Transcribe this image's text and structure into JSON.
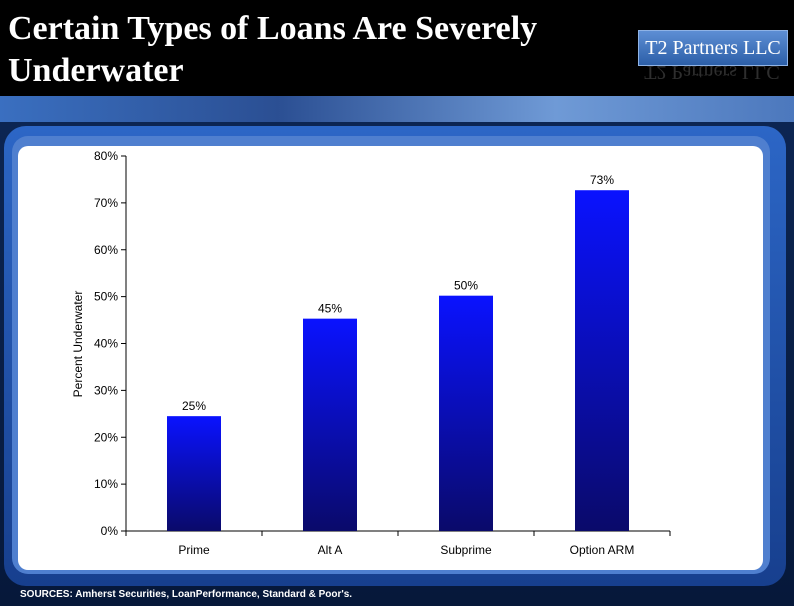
{
  "slide": {
    "title": "Certain Types of Loans Are Severely Underwater",
    "brand": "T2 Partners LLC",
    "sources": "SOURCES: Amherst Securities, LoanPerformance, Standard & Poor's."
  },
  "colors": {
    "bar_top": "#0a12ff",
    "bar_bottom": "#0a0a6a",
    "background": "#000000",
    "panel": "#ffffff"
  },
  "chart_data": {
    "type": "bar",
    "categories": [
      "Prime",
      "Alt A",
      "Subprime",
      "Option ARM"
    ],
    "values": [
      24.5,
      45.3,
      50.2,
      72.7
    ],
    "data_labels": [
      "25%",
      "45%",
      "50%",
      "73%"
    ],
    "ylabel": "Percent Underwater",
    "xlabel": "",
    "ylim": [
      0,
      80
    ],
    "yticks": [
      "0%",
      "10%",
      "20%",
      "30%",
      "40%",
      "50%",
      "60%",
      "70%",
      "80%"
    ],
    "grid": false,
    "legend": "none"
  }
}
